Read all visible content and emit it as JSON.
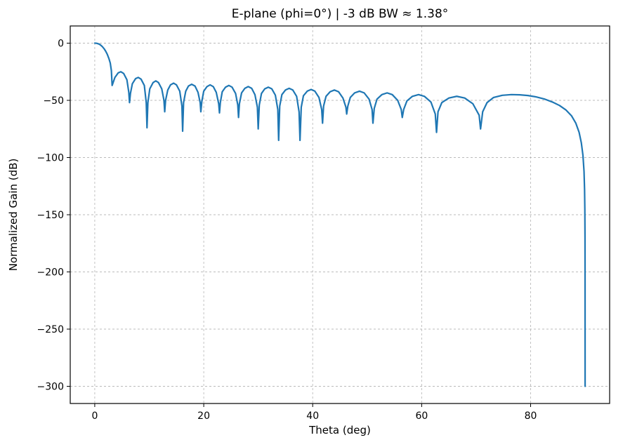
{
  "chart_data": {
    "type": "line",
    "title": "E-plane (phi=0°)  |  -3 dB BW ≈ 1.38°",
    "xlabel": "Theta (deg)",
    "ylabel": "Normalized Gain (dB)",
    "xlim": [
      -4.5,
      94.5
    ],
    "ylim": [
      -315,
      15
    ],
    "grid": {
      "on": true,
      "style": "dashed",
      "color": "#b0b0b0"
    },
    "legend": "none",
    "xticks": {
      "values": [
        0,
        20,
        40,
        60,
        80
      ],
      "labels": [
        "0",
        "20",
        "40",
        "60",
        "80"
      ]
    },
    "yticks": {
      "values": [
        0,
        -50,
        -100,
        -150,
        -200,
        -250,
        -300
      ],
      "labels": [
        "0",
        "−50",
        "−100",
        "−150",
        "−200",
        "−250",
        "−300"
      ]
    },
    "series": [
      {
        "name": "Normalized gain",
        "color": "#1f77b4",
        "linewidth": 2.2,
        "points": [
          [
            0,
            0
          ],
          [
            0.35,
            -0.15
          ],
          [
            0.7,
            -0.65
          ],
          [
            1.0,
            -1.4
          ],
          [
            1.38,
            -3.0
          ],
          [
            1.7,
            -4.8
          ],
          [
            2.0,
            -7.0
          ],
          [
            2.3,
            -9.8
          ],
          [
            2.6,
            -13.5
          ],
          [
            2.85,
            -17.5
          ],
          [
            3.05,
            -24.0
          ],
          [
            3.19,
            -37.0
          ],
          [
            3.7,
            -30.0
          ],
          [
            4.3,
            -26.0
          ],
          [
            4.78,
            -25.0
          ],
          [
            5.3,
            -26.5
          ],
          [
            5.9,
            -32.0
          ],
          [
            6.25,
            -43.0
          ],
          [
            6.38,
            -52.0
          ],
          [
            6.55,
            -44.0
          ],
          [
            6.9,
            -35.5
          ],
          [
            7.5,
            -31.0
          ],
          [
            7.98,
            -30.0
          ],
          [
            8.5,
            -31.5
          ],
          [
            9.1,
            -37.0
          ],
          [
            9.45,
            -52.0
          ],
          [
            9.59,
            -74.0
          ],
          [
            9.75,
            -52.0
          ],
          [
            10.1,
            -40.0
          ],
          [
            10.7,
            -34.5
          ],
          [
            11.21,
            -33.0
          ],
          [
            11.7,
            -34.5
          ],
          [
            12.3,
            -40.0
          ],
          [
            12.7,
            -50.0
          ],
          [
            12.84,
            -60.0
          ],
          [
            13.0,
            -50.0
          ],
          [
            13.4,
            -41.0
          ],
          [
            13.9,
            -36.5
          ],
          [
            14.48,
            -35.0
          ],
          [
            15.0,
            -36.5
          ],
          [
            15.6,
            -42.0
          ],
          [
            16.0,
            -55.0
          ],
          [
            16.13,
            -77.0
          ],
          [
            16.3,
            -52.0
          ],
          [
            16.7,
            -42.0
          ],
          [
            17.2,
            -37.5
          ],
          [
            17.79,
            -36.0
          ],
          [
            18.4,
            -37.5
          ],
          [
            18.95,
            -43.0
          ],
          [
            19.35,
            -52.0
          ],
          [
            19.47,
            -60.0
          ],
          [
            19.65,
            -51.0
          ],
          [
            20.0,
            -42.0
          ],
          [
            20.6,
            -38.0
          ],
          [
            21.17,
            -36.5
          ],
          [
            21.75,
            -38.0
          ],
          [
            22.3,
            -43.0
          ],
          [
            22.75,
            -53.0
          ],
          [
            22.89,
            -61.0
          ],
          [
            23.05,
            -52.0
          ],
          [
            23.4,
            -42.5
          ],
          [
            24.0,
            -38.5
          ],
          [
            24.62,
            -37.0
          ],
          [
            25.2,
            -38.5
          ],
          [
            25.85,
            -44.0
          ],
          [
            26.25,
            -54.0
          ],
          [
            26.39,
            -65.0
          ],
          [
            26.55,
            -53.0
          ],
          [
            26.95,
            -43.5
          ],
          [
            27.55,
            -39.5
          ],
          [
            28.17,
            -38.0
          ],
          [
            28.8,
            -39.5
          ],
          [
            29.4,
            -45.0
          ],
          [
            29.85,
            -56.0
          ],
          [
            30.0,
            -75.0
          ],
          [
            30.2,
            -54.0
          ],
          [
            30.6,
            -44.0
          ],
          [
            31.2,
            -40.0
          ],
          [
            31.85,
            -38.5
          ],
          [
            32.5,
            -40.0
          ],
          [
            33.15,
            -45.5
          ],
          [
            33.6,
            -58.0
          ],
          [
            33.75,
            -85.0
          ],
          [
            33.95,
            -55.0
          ],
          [
            34.35,
            -45.0
          ],
          [
            35.0,
            -41.0
          ],
          [
            35.68,
            -39.5
          ],
          [
            36.35,
            -41.0
          ],
          [
            37.05,
            -46.5
          ],
          [
            37.5,
            -60.0
          ],
          [
            37.67,
            -85.0
          ],
          [
            37.9,
            -56.0
          ],
          [
            38.3,
            -46.0
          ],
          [
            39.0,
            -42.0
          ],
          [
            39.71,
            -40.5
          ],
          [
            40.4,
            -42.0
          ],
          [
            41.15,
            -47.5
          ],
          [
            41.65,
            -58.0
          ],
          [
            41.81,
            -70.0
          ],
          [
            42.0,
            -55.0
          ],
          [
            42.45,
            -46.5
          ],
          [
            43.2,
            -42.5
          ],
          [
            43.98,
            -41.0
          ],
          [
            44.75,
            -42.5
          ],
          [
            45.55,
            -48.0
          ],
          [
            46.1,
            -56.0
          ],
          [
            46.24,
            -62.0
          ],
          [
            46.45,
            -55.0
          ],
          [
            46.9,
            -47.5
          ],
          [
            47.7,
            -43.5
          ],
          [
            48.59,
            -42.0
          ],
          [
            49.45,
            -43.5
          ],
          [
            50.35,
            -49.0
          ],
          [
            50.9,
            -58.0
          ],
          [
            51.06,
            -70.0
          ],
          [
            51.3,
            -57.0
          ],
          [
            51.8,
            -49.0
          ],
          [
            52.7,
            -45.0
          ],
          [
            53.66,
            -43.5
          ],
          [
            54.6,
            -45.0
          ],
          [
            55.6,
            -50.0
          ],
          [
            56.25,
            -58.0
          ],
          [
            56.44,
            -65.0
          ],
          [
            56.7,
            -58.0
          ],
          [
            57.3,
            -50.5
          ],
          [
            58.3,
            -46.5
          ],
          [
            59.43,
            -45.0
          ],
          [
            60.5,
            -46.5
          ],
          [
            61.7,
            -51.5
          ],
          [
            62.5,
            -62.0
          ],
          [
            62.73,
            -78.0
          ],
          [
            63.0,
            -60.0
          ],
          [
            63.7,
            -52.0
          ],
          [
            65.0,
            -48.0
          ],
          [
            66.44,
            -46.5
          ],
          [
            67.9,
            -48.0
          ],
          [
            69.4,
            -53.0
          ],
          [
            70.55,
            -63.0
          ],
          [
            70.81,
            -75.0
          ],
          [
            71.2,
            -60.0
          ],
          [
            72.0,
            -52.0
          ],
          [
            73.2,
            -47.5
          ],
          [
            74.8,
            -45.6
          ],
          [
            76.47,
            -45.0
          ],
          [
            78.0,
            -45.2
          ],
          [
            79.5,
            -45.8
          ],
          [
            81.0,
            -47.0
          ],
          [
            82.5,
            -48.8
          ],
          [
            84.0,
            -51.5
          ],
          [
            85.3,
            -54.5
          ],
          [
            86.5,
            -58.5
          ],
          [
            87.5,
            -63.5
          ],
          [
            88.3,
            -70.0
          ],
          [
            88.9,
            -78.0
          ],
          [
            89.3,
            -87.0
          ],
          [
            89.6,
            -98.0
          ],
          [
            89.8,
            -112.0
          ],
          [
            89.9,
            -128.0
          ],
          [
            89.95,
            -145.0
          ],
          [
            89.98,
            -170.0
          ],
          [
            89.99,
            -200.0
          ],
          [
            90.0,
            -300.0
          ]
        ]
      }
    ]
  }
}
